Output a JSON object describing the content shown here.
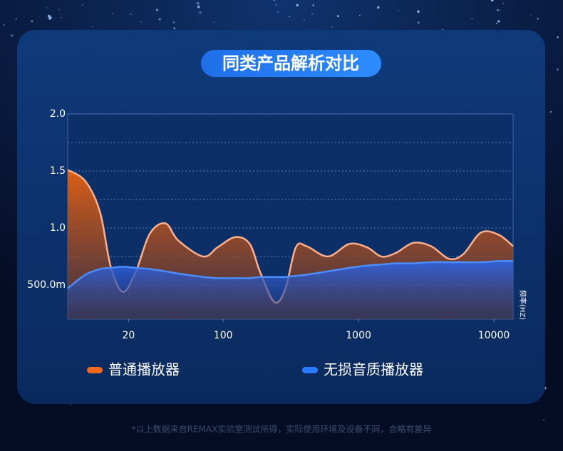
{
  "chart_data": {
    "type": "area",
    "title": "同类产品解析对比",
    "x_label": "频率(HZ)",
    "footnote": "*以上数据来自REMAX实验室测试所得，实际使用环境及设备不同，会略有差异",
    "log_x": true,
    "xlim": [
      7.1,
      13870
    ],
    "xticks": [
      20,
      100,
      1000,
      10000
    ],
    "ylim": [
      0.2,
      2.0
    ],
    "yticks": [
      {
        "value": 0.5,
        "label": "500.0m"
      },
      {
        "value": 1,
        "label": "1.0"
      },
      1.5,
      {
        "value": 2,
        "label": "2.0"
      }
    ],
    "minor_yticks": [
      0.75,
      1.25,
      1.75
    ],
    "grid": true,
    "legend": "bottom",
    "x": [
      7.1,
      9.6,
      12.3,
      14.7,
      18.1,
      22.5,
      28.7,
      37.5,
      46.6,
      71.2,
      90.8,
      123,
      157,
      188,
      239,
      287,
      344,
      413,
      594,
      855,
      1157,
      1473,
      1879,
      2543,
      3442,
      4660,
      5940,
      8040,
      10880,
      13870
    ],
    "series": [
      {
        "name": "普通播放器",
        "color": "#f26a1b",
        "values": [
          1.51,
          1.41,
          1.14,
          0.67,
          0.44,
          0.61,
          0.95,
          1.04,
          0.89,
          0.75,
          0.83,
          0.92,
          0.86,
          0.61,
          0.35,
          0.46,
          0.83,
          0.84,
          0.75,
          0.86,
          0.83,
          0.75,
          0.78,
          0.87,
          0.84,
          0.73,
          0.77,
          0.96,
          0.94,
          0.84
        ]
      },
      {
        "name": "无损音质播放器",
        "color": "#2a7bff",
        "values": [
          0.47,
          0.59,
          0.64,
          0.65,
          0.66,
          0.65,
          0.64,
          0.62,
          0.6,
          0.57,
          0.56,
          0.56,
          0.56,
          0.57,
          0.57,
          0.57,
          0.58,
          0.59,
          0.62,
          0.65,
          0.67,
          0.68,
          0.69,
          0.69,
          0.7,
          0.7,
          0.7,
          0.7,
          0.71,
          0.71
        ]
      }
    ]
  }
}
